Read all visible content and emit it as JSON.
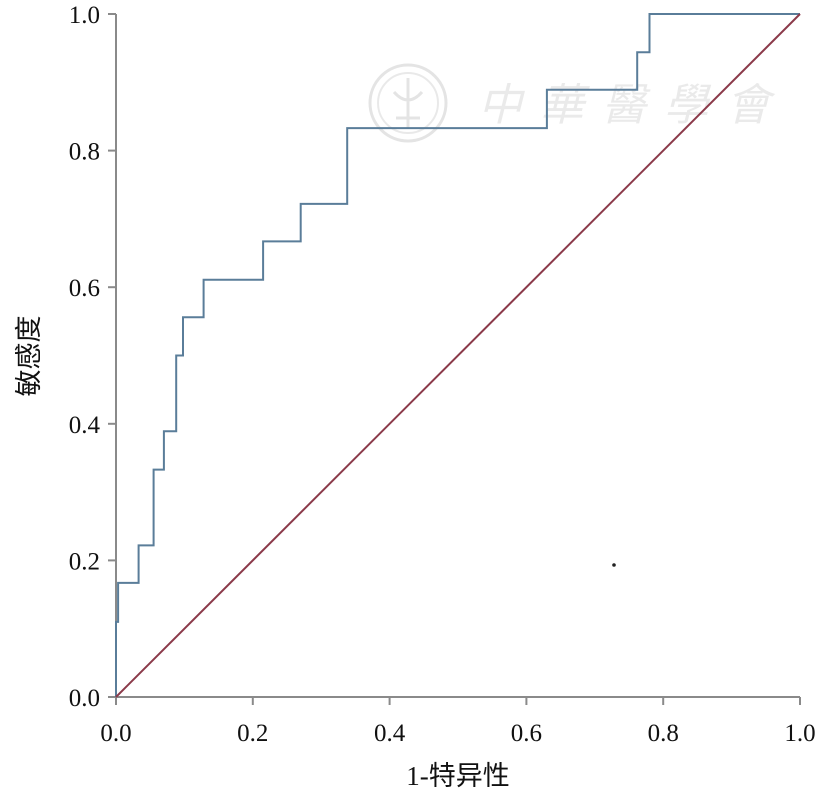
{
  "chart_data": {
    "type": "line",
    "title": "",
    "xlabel": "1-特异性",
    "ylabel": "敏感度",
    "xlim": [
      0.0,
      1.0
    ],
    "ylim": [
      0.0,
      1.0
    ],
    "x_ticks": [
      "0.0",
      "0.2",
      "0.4",
      "0.6",
      "0.8",
      "1.0"
    ],
    "y_ticks": [
      "0.0",
      "0.2",
      "0.4",
      "0.6",
      "0.8",
      "1.0"
    ],
    "grid": false,
    "legend": "none",
    "series": [
      {
        "color": "#5a7d99",
        "step": true,
        "x": [
          0.0,
          0.0,
          0.003,
          0.003,
          0.033,
          0.033,
          0.055,
          0.055,
          0.07,
          0.07,
          0.088,
          0.088,
          0.098,
          0.098,
          0.128,
          0.128,
          0.215,
          0.215,
          0.27,
          0.27,
          0.338,
          0.338,
          0.63,
          0.63,
          0.762,
          0.762,
          0.78,
          0.78,
          1.0
        ],
        "y": [
          0.0,
          0.11,
          0.11,
          0.167,
          0.167,
          0.222,
          0.222,
          0.333,
          0.333,
          0.389,
          0.389,
          0.5,
          0.5,
          0.556,
          0.556,
          0.611,
          0.611,
          0.667,
          0.667,
          0.722,
          0.722,
          0.833,
          0.833,
          0.889,
          0.889,
          0.944,
          0.944,
          1.0,
          1.0
        ]
      },
      {
        "color": "#8b3a4a",
        "step": false,
        "x": [
          0.0,
          1.0
        ],
        "y": [
          0.0,
          1.0
        ]
      }
    ]
  },
  "watermark": {
    "text": "中華醫學會",
    "seal_icon": "emblem-seal-icon"
  }
}
